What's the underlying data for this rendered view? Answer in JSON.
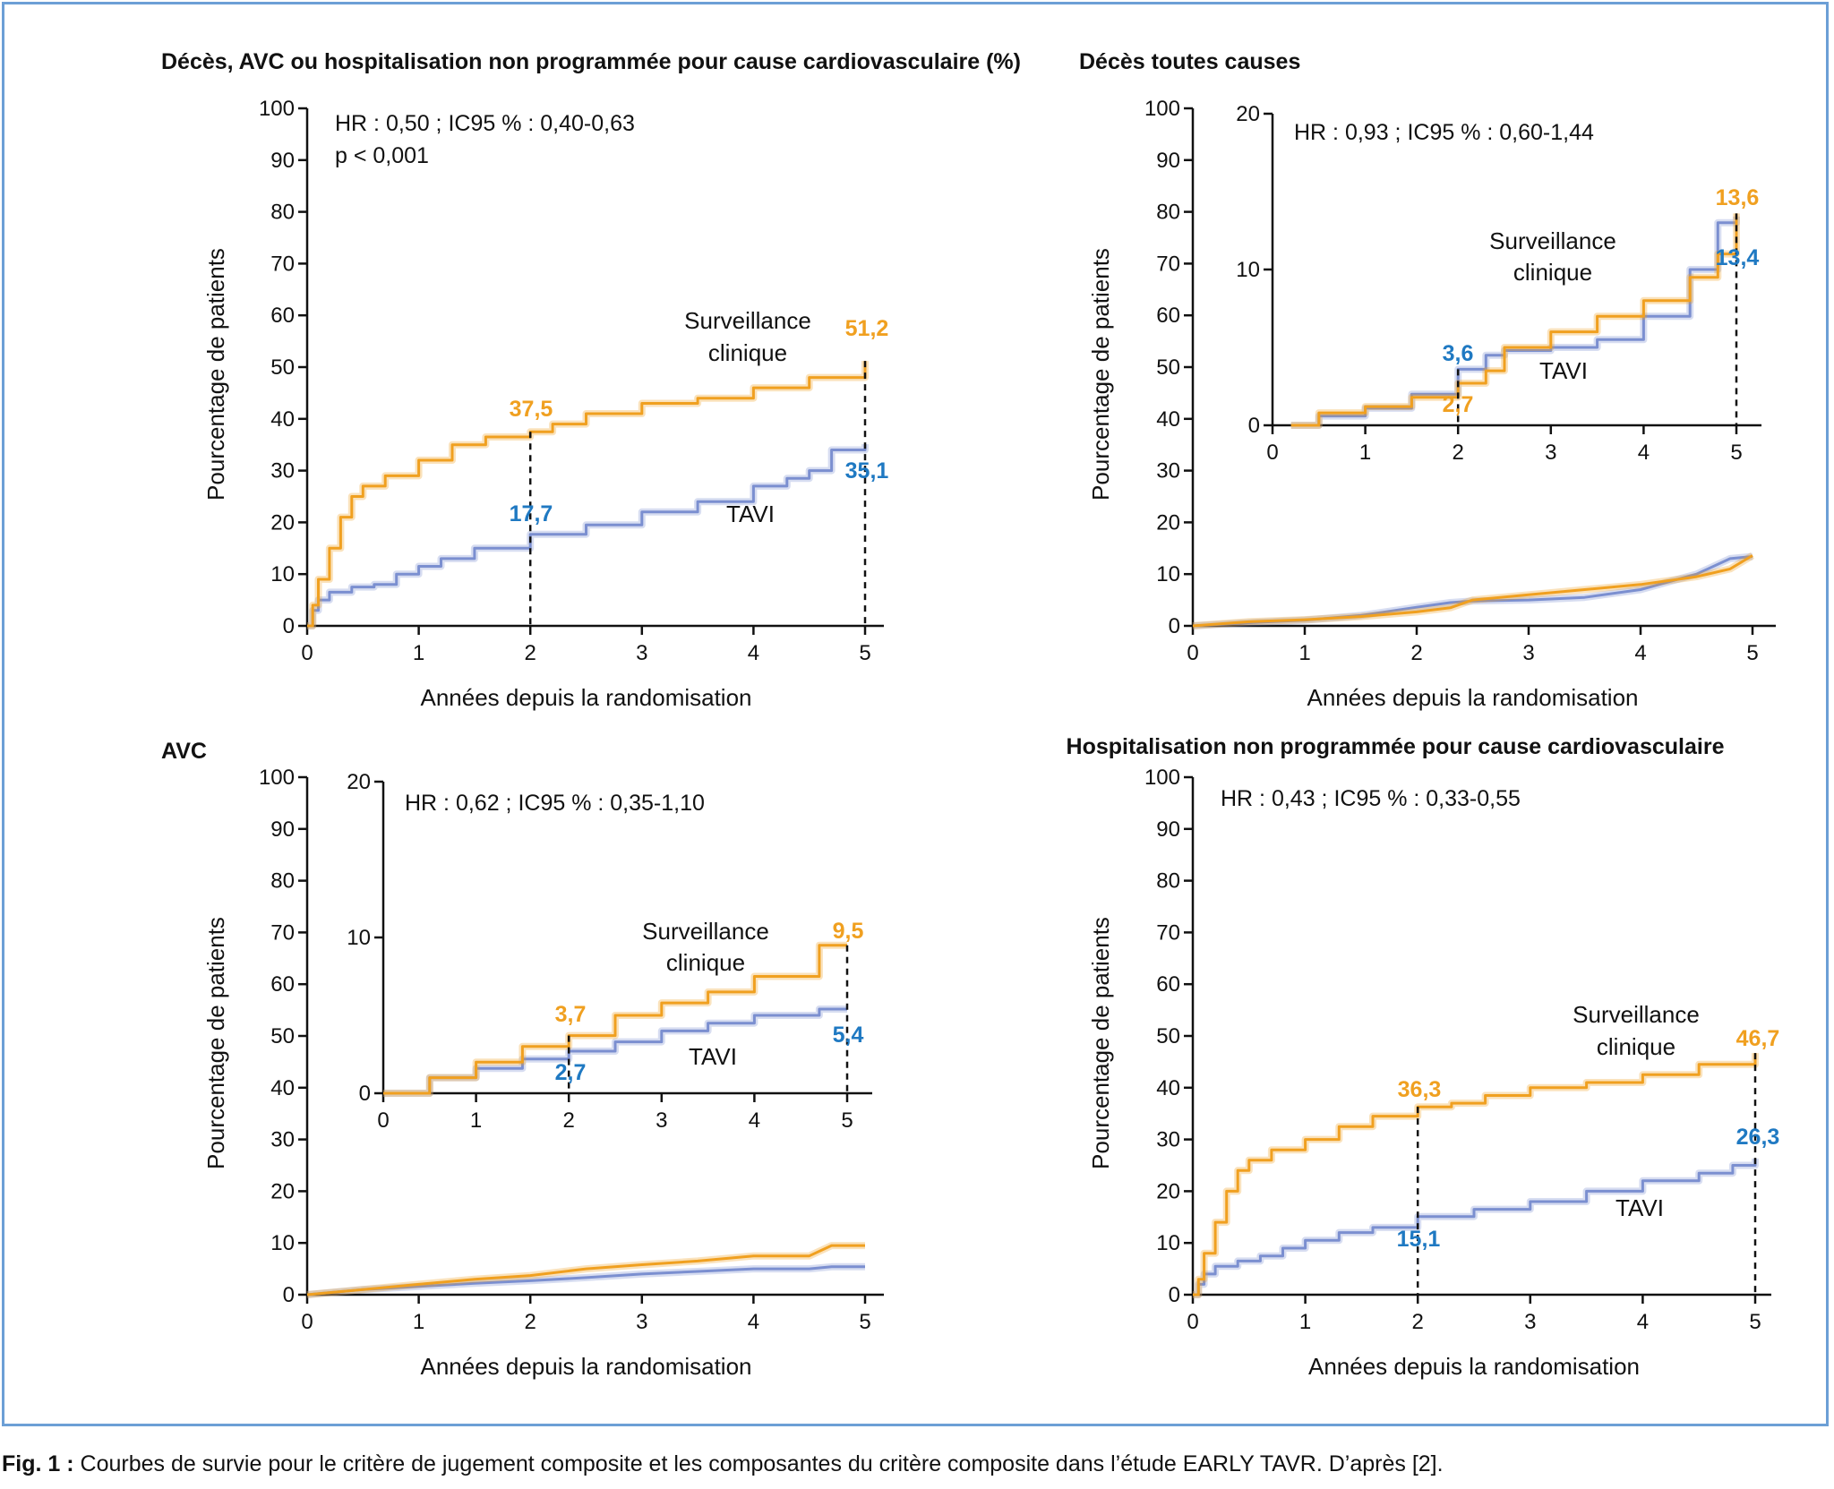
{
  "colors": {
    "surveillance": "#f0a020",
    "tavi": "#7b8fd0",
    "value_orange": "#f0a020",
    "value_blue": "#1f79c2",
    "frame": "#6c9fd6"
  },
  "caption": {
    "prefix": "Fig. 1 :",
    "text": " Courbes de survie pour le critère de jugement composite et les composantes du critère composite dans l’étude EARLY TAVR. D’après [2]."
  },
  "chart_data": [
    {
      "type": "line",
      "title": "Décès, AVC ou hospitalisation non programmée pour cause cardiovasculaire (%)",
      "xlabel": "Années depuis la randomisation",
      "ylabel": "Pourcentage de patients",
      "xlim": [
        0,
        5
      ],
      "ylim": [
        0,
        100
      ],
      "xticks": [
        "0",
        "1",
        "2",
        "3",
        "4",
        "5"
      ],
      "yticks": [
        "0",
        "10",
        "20",
        "30",
        "40",
        "50",
        "60",
        "70",
        "80",
        "90",
        "100"
      ],
      "annotations": [
        "HR : 0,50 ; IC95 % : 0,40-0,63",
        "p < 0,001"
      ],
      "series": [
        {
          "name": "Surveillance clinique",
          "label_lines": [
            "Surveillance",
            "clinique"
          ],
          "x": [
            0,
            0.05,
            0.1,
            0.2,
            0.3,
            0.4,
            0.5,
            0.7,
            1.0,
            1.3,
            1.6,
            2.0,
            2.2,
            2.5,
            3.0,
            3.5,
            4.0,
            4.5,
            5.0
          ],
          "y": [
            0,
            4,
            9,
            15,
            21,
            25,
            27,
            29,
            32,
            35,
            36.5,
            37.5,
            39,
            41,
            43,
            44,
            46,
            48,
            51.2
          ]
        },
        {
          "name": "TAVI",
          "label_lines": [
            "TAVI"
          ],
          "x": [
            0,
            0.05,
            0.1,
            0.2,
            0.4,
            0.6,
            0.8,
            1.0,
            1.2,
            1.5,
            2.0,
            2.5,
            3.0,
            3.5,
            4.0,
            4.3,
            4.5,
            4.7,
            5.0
          ],
          "y": [
            0,
            3,
            5,
            6.5,
            7.5,
            8,
            10,
            11.5,
            13,
            15,
            17.7,
            19.5,
            22,
            24,
            27,
            28.5,
            30,
            34,
            35.1
          ]
        }
      ],
      "markers": [
        {
          "x": 2,
          "label": "37,5",
          "color": "orange"
        },
        {
          "x": 2,
          "label": "17,7",
          "color": "blue"
        },
        {
          "x": 5,
          "label": "51,2",
          "color": "orange"
        },
        {
          "x": 5,
          "label": "35,1",
          "color": "blue"
        }
      ]
    },
    {
      "type": "line",
      "title": "Décès toutes causes",
      "xlabel": "Années depuis la randomisation",
      "ylabel": "Pourcentage de patients",
      "xlim": [
        0,
        5
      ],
      "ylim": [
        0,
        100
      ],
      "xticks": [
        "0",
        "1",
        "2",
        "3",
        "4",
        "5"
      ],
      "yticks": [
        "0",
        "10",
        "20",
        "30",
        "40",
        "50",
        "60",
        "70",
        "80",
        "90",
        "100"
      ],
      "annotations": [
        "HR : 0,93 ; IC95 % : 0,60-1,44"
      ],
      "series": [
        {
          "name": "Surveillance clinique",
          "label_lines": [
            "Surveillance",
            "clinique"
          ],
          "x": [
            0,
            0.5,
            1.0,
            1.5,
            2.0,
            2.3,
            2.5,
            3.0,
            3.5,
            4.0,
            4.5,
            4.8,
            5.0
          ],
          "y": [
            0,
            0.8,
            1.2,
            1.8,
            2.7,
            3.5,
            5,
            6,
            7,
            8,
            9.5,
            11,
            13.6
          ]
        },
        {
          "name": "TAVI",
          "label_lines": [
            "TAVI"
          ],
          "x": [
            0,
            0.5,
            1.0,
            1.5,
            2.0,
            2.3,
            2.5,
            3.0,
            3.5,
            4.0,
            4.5,
            4.8,
            5.0
          ],
          "y": [
            0,
            0.6,
            1.1,
            2,
            3.6,
            4.5,
            4.8,
            5,
            5.5,
            7,
            10,
            13,
            13.4
          ]
        }
      ],
      "inset": {
        "xlim": [
          0,
          5
        ],
        "ylim": [
          0,
          20
        ],
        "xticks": [
          "0",
          "1",
          "2",
          "3",
          "4",
          "5"
        ],
        "yticks": [
          "0",
          "10",
          "20"
        ],
        "series": [
          {
            "x": [
              0.2,
              0.5,
              1.0,
              1.5,
              2.0,
              2.3,
              2.5,
              3.0,
              3.5,
              4.0,
              4.5,
              4.8,
              5.0
            ],
            "y": [
              0,
              0.8,
              1.2,
              1.8,
              2.7,
              3.5,
              5,
              6,
              7,
              8,
              9.5,
              11,
              13.6
            ]
          },
          {
            "x": [
              0.2,
              0.5,
              1.0,
              1.5,
              2.0,
              2.3,
              2.5,
              3.0,
              3.5,
              4.0,
              4.5,
              4.8,
              5.0
            ],
            "y": [
              0,
              0.6,
              1.1,
              2,
              3.6,
              4.5,
              4.8,
              5,
              5.5,
              7,
              10,
              13,
              13.4
            ]
          }
        ],
        "markers": [
          {
            "x": 2,
            "label": "3,6",
            "color": "blue"
          },
          {
            "x": 2,
            "label": "2,7",
            "color": "orange"
          },
          {
            "x": 5,
            "label": "13,6",
            "color": "orange"
          },
          {
            "x": 5,
            "label": "13,4",
            "color": "blue"
          }
        ]
      }
    },
    {
      "type": "line",
      "title": "AVC",
      "xlabel": "Années depuis la randomisation",
      "ylabel": "Pourcentage de patients",
      "xlim": [
        0,
        5
      ],
      "ylim": [
        0,
        100
      ],
      "xticks": [
        "0",
        "1",
        "2",
        "3",
        "4",
        "5"
      ],
      "yticks": [
        "0",
        "10",
        "20",
        "30",
        "40",
        "50",
        "60",
        "70",
        "80",
        "90",
        "100"
      ],
      "annotations": [
        "HR : 0,62 ; IC95 % : 0,35-1,10"
      ],
      "series": [
        {
          "name": "Surveillance clinique",
          "label_lines": [
            "Surveillance",
            "clinique"
          ],
          "x": [
            0,
            0.5,
            1.0,
            1.5,
            2.0,
            2.5,
            3.0,
            3.5,
            4.0,
            4.5,
            4.7,
            5.0
          ],
          "y": [
            0,
            1,
            2,
            3,
            3.7,
            5,
            5.8,
            6.5,
            7.5,
            7.5,
            9.5,
            9.5
          ]
        },
        {
          "name": "TAVI",
          "label_lines": [
            "TAVI"
          ],
          "x": [
            0,
            0.5,
            1.0,
            1.5,
            2.0,
            2.5,
            3.0,
            3.5,
            4.0,
            4.5,
            4.7,
            5.0
          ],
          "y": [
            0,
            1,
            1.6,
            2.2,
            2.7,
            3.3,
            4,
            4.5,
            5,
            5,
            5.4,
            5.4
          ]
        }
      ],
      "inset": {
        "xlim": [
          0,
          5
        ],
        "ylim": [
          0,
          20
        ],
        "xticks": [
          "0",
          "1",
          "2",
          "3",
          "4",
          "5"
        ],
        "yticks": [
          "0",
          "10",
          "20"
        ],
        "series": [
          {
            "x": [
              0,
              0.5,
              1.0,
              1.5,
              2.0,
              2.5,
              3.0,
              3.5,
              4.0,
              4.5,
              4.7,
              5.0
            ],
            "y": [
              0,
              1,
              2,
              3,
              3.7,
              5,
              5.8,
              6.5,
              7.5,
              7.5,
              9.5,
              9.5
            ]
          },
          {
            "x": [
              0,
              0.5,
              1.0,
              1.5,
              2.0,
              2.5,
              3.0,
              3.5,
              4.0,
              4.5,
              4.7,
              5.0
            ],
            "y": [
              0,
              1,
              1.6,
              2.2,
              2.7,
              3.3,
              4,
              4.5,
              5,
              5,
              5.4,
              5.4
            ]
          }
        ],
        "markers": [
          {
            "x": 2,
            "label": "3,7",
            "color": "orange"
          },
          {
            "x": 2,
            "label": "2,7",
            "color": "blue"
          },
          {
            "x": 5,
            "label": "9,5",
            "color": "orange"
          },
          {
            "x": 5,
            "label": "5,4",
            "color": "blue"
          }
        ]
      }
    },
    {
      "type": "line",
      "title": "Hospitalisation non programmée pour cause cardiovasculaire",
      "xlabel": "Années depuis la randomisation",
      "ylabel": "Pourcentage de patients",
      "xlim": [
        0,
        5
      ],
      "ylim": [
        0,
        100
      ],
      "xticks": [
        "0",
        "1",
        "2",
        "3",
        "4",
        "5"
      ],
      "yticks": [
        "0",
        "10",
        "20",
        "30",
        "40",
        "50",
        "60",
        "70",
        "80",
        "90",
        "100"
      ],
      "annotations": [
        "HR : 0,43 ; IC95 % : 0,33-0,55"
      ],
      "series": [
        {
          "name": "Surveillance clinique",
          "label_lines": [
            "Surveillance",
            "clinique"
          ],
          "x": [
            0,
            0.05,
            0.1,
            0.2,
            0.3,
            0.4,
            0.5,
            0.7,
            1.0,
            1.3,
            1.6,
            2.0,
            2.3,
            2.6,
            3.0,
            3.5,
            4.0,
            4.5,
            5.0
          ],
          "y": [
            0,
            3,
            8,
            14,
            20,
            24,
            26,
            28,
            30,
            32.5,
            34.5,
            36.3,
            37,
            38.5,
            40,
            41,
            42.5,
            44.5,
            46.7
          ]
        },
        {
          "name": "TAVI",
          "label_lines": [
            "TAVI"
          ],
          "x": [
            0,
            0.05,
            0.1,
            0.2,
            0.4,
            0.6,
            0.8,
            1.0,
            1.3,
            1.6,
            2.0,
            2.5,
            3.0,
            3.5,
            4.0,
            4.5,
            4.8,
            5.0
          ],
          "y": [
            0,
            2,
            4,
            5.5,
            6.5,
            7.5,
            9,
            10.5,
            12,
            13,
            15.1,
            16.5,
            18,
            20,
            22,
            23.5,
            25,
            26.3
          ]
        }
      ],
      "markers": [
        {
          "x": 2,
          "label": "36,3",
          "color": "orange"
        },
        {
          "x": 2,
          "label": "15,1",
          "color": "blue"
        },
        {
          "x": 5,
          "label": "46,7",
          "color": "orange"
        },
        {
          "x": 5,
          "label": "26,3",
          "color": "blue"
        }
      ]
    }
  ]
}
